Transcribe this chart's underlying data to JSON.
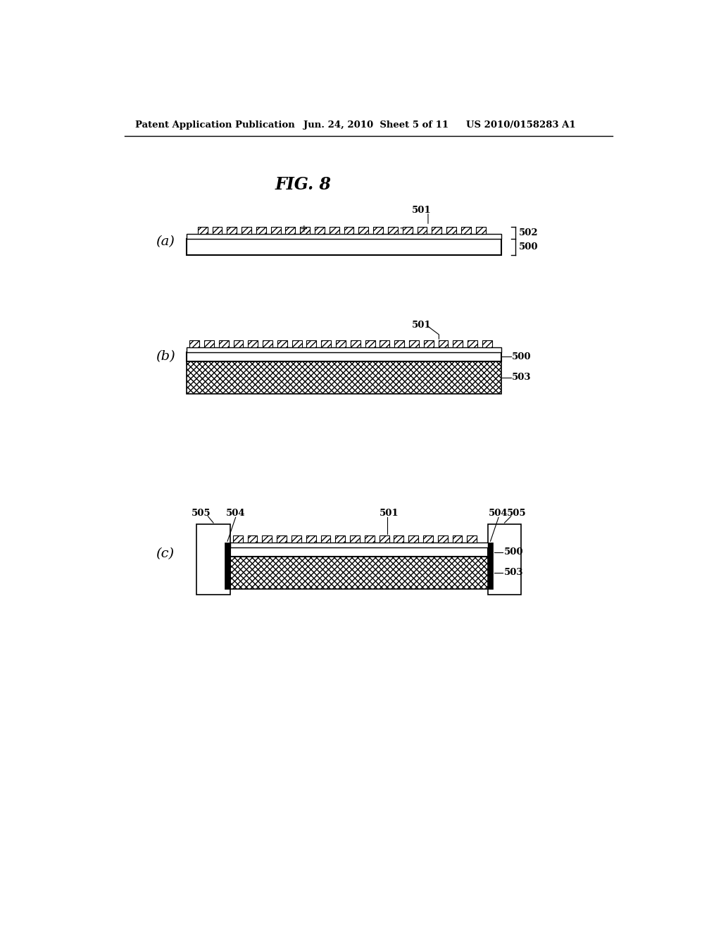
{
  "bg_color": "#ffffff",
  "header_left": "Patent Application Publication",
  "header_mid": "Jun. 24, 2010  Sheet 5 of 11",
  "header_right": "US 2010/0158283 A1",
  "fig_title": "FIG. 8",
  "panel_labels": [
    "(a)",
    "(b)",
    "(c)"
  ]
}
